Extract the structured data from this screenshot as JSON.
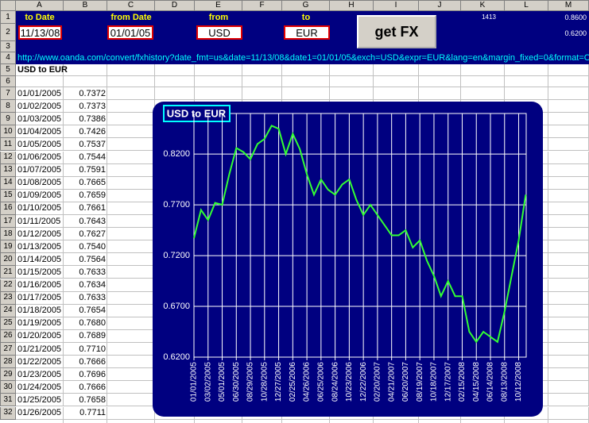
{
  "spreadsheet": {
    "columns": [
      "A",
      "B",
      "C",
      "D",
      "E",
      "F",
      "G",
      "H",
      "I",
      "J",
      "K",
      "L",
      "M"
    ],
    "row_numbers": [
      1,
      2,
      3,
      4,
      5,
      6,
      7,
      8,
      9,
      10,
      11,
      12,
      13,
      14,
      15,
      16,
      17,
      18,
      19,
      20,
      21,
      22,
      23,
      24,
      25,
      26,
      27,
      28,
      29,
      30,
      31,
      32
    ],
    "controls": {
      "to_date_label": "to Date",
      "to_date": "11/13/08",
      "from_date_label": "from Date",
      "from_date": "01/01/05",
      "from_label": "from",
      "from_currency": "USD",
      "to_label": "to",
      "to_currency": "EUR",
      "button": "get FX",
      "k1": "1413",
      "m1": "0.8600",
      "m2": "0.6200"
    },
    "url": "http://www.oanda.com/convert/fxhistory?date_fmt=us&date=11/13/08&date1=01/01/05&exch=USD&expr=EUR&lang=en&margin_fixed=0&format=CSV",
    "sheet_title": "USD to EUR",
    "rows": [
      [
        "01/01/2005",
        "0.7372"
      ],
      [
        "01/02/2005",
        "0.7373"
      ],
      [
        "01/03/2005",
        "0.7386"
      ],
      [
        "01/04/2005",
        "0.7426"
      ],
      [
        "01/05/2005",
        "0.7537"
      ],
      [
        "01/06/2005",
        "0.7544"
      ],
      [
        "01/07/2005",
        "0.7591"
      ],
      [
        "01/08/2005",
        "0.7665"
      ],
      [
        "01/09/2005",
        "0.7659"
      ],
      [
        "01/10/2005",
        "0.7661"
      ],
      [
        "01/11/2005",
        "0.7643"
      ],
      [
        "01/12/2005",
        "0.7627"
      ],
      [
        "01/13/2005",
        "0.7540"
      ],
      [
        "01/14/2005",
        "0.7564"
      ],
      [
        "01/15/2005",
        "0.7633"
      ],
      [
        "01/16/2005",
        "0.7634"
      ],
      [
        "01/17/2005",
        "0.7633"
      ],
      [
        "01/18/2005",
        "0.7654"
      ],
      [
        "01/19/2005",
        "0.7680"
      ],
      [
        "01/20/2005",
        "0.7689"
      ],
      [
        "01/21/2005",
        "0.7710"
      ],
      [
        "01/22/2005",
        "0.7666"
      ],
      [
        "01/23/2005",
        "0.7696"
      ],
      [
        "01/24/2005",
        "0.7666"
      ],
      [
        "01/25/2005",
        "0.7658"
      ],
      [
        "01/26/2005",
        "0.7711"
      ]
    ]
  },
  "chart_data": {
    "type": "line",
    "title": "USD to EUR",
    "color": "#33ff33",
    "x": [
      "01/01/2005",
      "01/31/2005",
      "03/02/2005",
      "04/01/2005",
      "05/01/2005",
      "05/31/2005",
      "06/30/2005",
      "07/30/2005",
      "08/29/2005",
      "09/28/2005",
      "10/28/2005",
      "11/27/2005",
      "12/27/2005",
      "01/26/2006",
      "02/25/2006",
      "03/27/2006",
      "04/26/2006",
      "05/26/2006",
      "06/25/2006",
      "07/25/2006",
      "08/24/2006",
      "09/23/2006",
      "10/23/2006",
      "11/22/2006",
      "12/22/2006",
      "01/21/2007",
      "02/20/2007",
      "03/22/2007",
      "04/21/2007",
      "05/21/2007",
      "06/20/2007",
      "07/20/2007",
      "08/19/2007",
      "09/18/2007",
      "10/18/2007",
      "11/17/2007",
      "12/17/2007",
      "01/16/2008",
      "02/15/2008",
      "03/16/2008",
      "04/15/2008",
      "05/15/2008",
      "06/14/2008",
      "07/14/2008",
      "08/13/2008",
      "09/12/2008",
      "10/12/2008",
      "11/11/2008"
    ],
    "values": [
      0.7372,
      0.765,
      0.755,
      0.772,
      0.77,
      0.8,
      0.826,
      0.822,
      0.815,
      0.83,
      0.835,
      0.848,
      0.845,
      0.82,
      0.84,
      0.825,
      0.8,
      0.78,
      0.795,
      0.785,
      0.78,
      0.79,
      0.795,
      0.775,
      0.76,
      0.77,
      0.76,
      0.75,
      0.74,
      0.74,
      0.745,
      0.728,
      0.735,
      0.715,
      0.7,
      0.68,
      0.695,
      0.68,
      0.68,
      0.645,
      0.635,
      0.645,
      0.64,
      0.635,
      0.665,
      0.7,
      0.735,
      0.78
    ],
    "xlim": [
      "01/01/2005",
      "11/13/2008"
    ],
    "xticks": [
      "01/01/2005",
      "03/02/2005",
      "05/01/2005",
      "06/30/2005",
      "08/29/2005",
      "10/28/2005",
      "12/27/2005",
      "02/25/2006",
      "04/26/2006",
      "06/25/2006",
      "08/24/2006",
      "10/23/2006",
      "12/22/2006",
      "02/20/2007",
      "04/21/2007",
      "06/20/2007",
      "08/19/2007",
      "10/18/2007",
      "12/17/2007",
      "02/15/2008",
      "04/15/2008",
      "06/14/2008",
      "08/13/2008",
      "10/12/2008"
    ],
    "ylim": [
      0.62,
      0.86
    ],
    "yticks": [
      {
        "value": 0.62,
        "label": "0.6200"
      },
      {
        "value": 0.67,
        "label": "0.6700"
      },
      {
        "value": 0.72,
        "label": "0.7200"
      },
      {
        "value": 0.77,
        "label": "0.7700"
      },
      {
        "value": 0.82,
        "label": "0.8200"
      }
    ],
    "grid": true
  }
}
